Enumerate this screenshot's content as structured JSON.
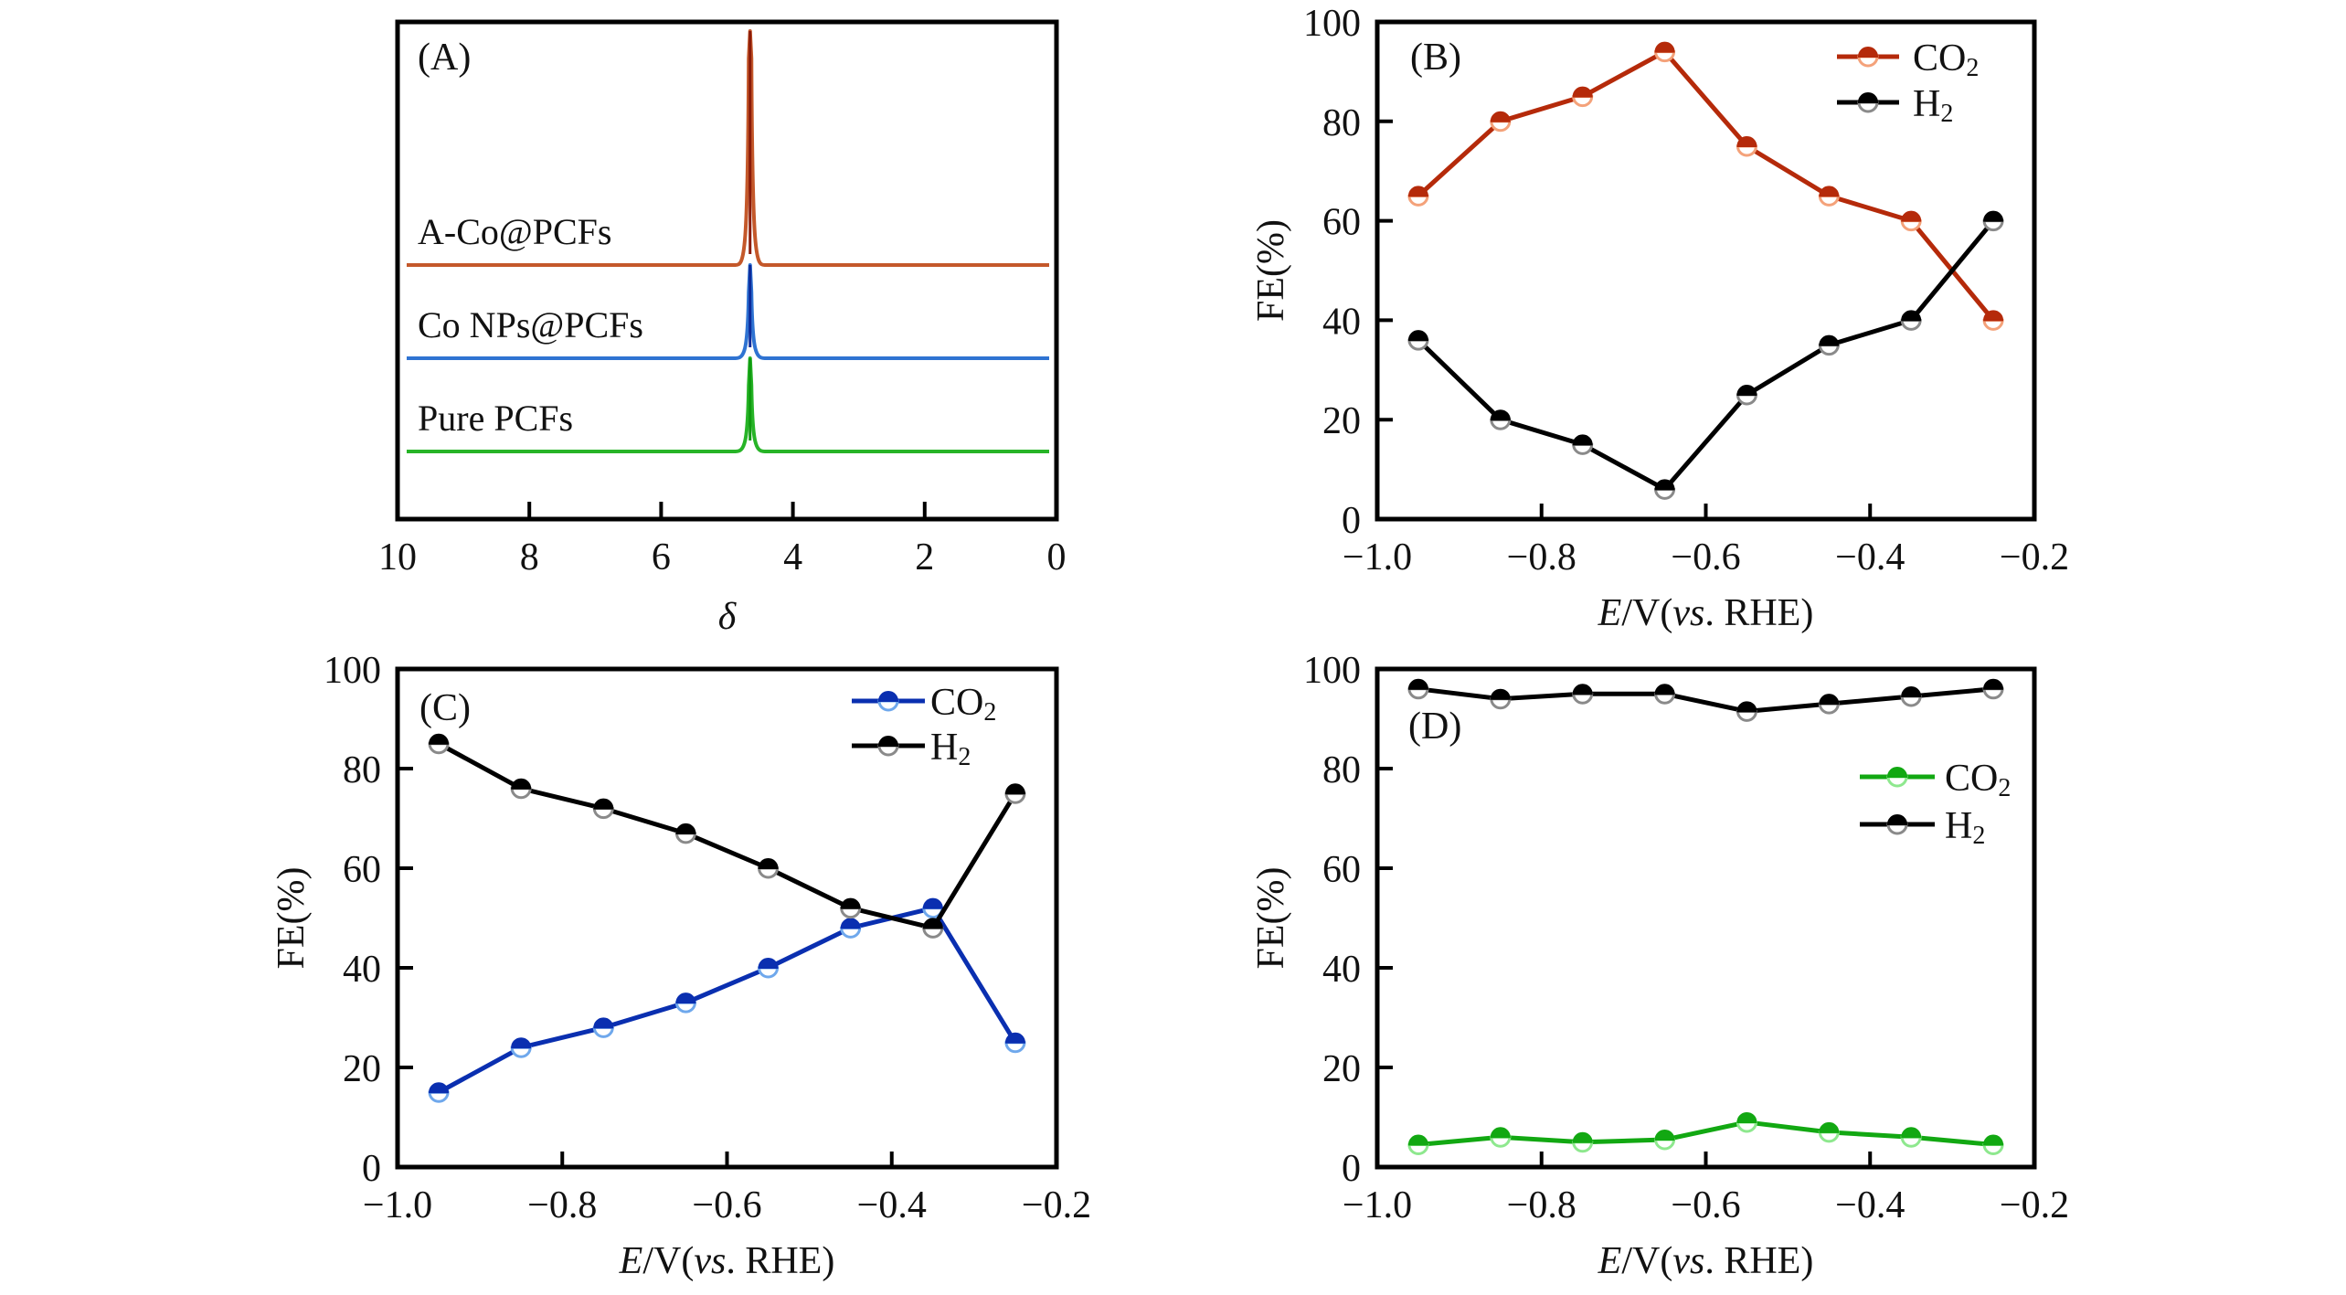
{
  "figure": {
    "panels": [
      "A",
      "B",
      "C",
      "D"
    ]
  },
  "chart_data": [
    {
      "id": "A",
      "type": "line",
      "panel_label": "(A)",
      "title": "",
      "xlabel": "δ",
      "ylabel": "",
      "xlim": [
        10,
        0
      ],
      "x_ticks": [
        10,
        8,
        6,
        4,
        2,
        0
      ],
      "x_tick_labels": [
        "10",
        "8",
        "6",
        "4",
        "2",
        "0"
      ],
      "y_ticks": [],
      "grid": false,
      "description": "Stacked 1H NMR-like spectra with a single sharp peak",
      "series": [
        {
          "name": "A-Co@PCFs",
          "color": "#c4582a",
          "peak_color": "#8a1a08",
          "peak_position": 4.65,
          "baseline_offset": 3,
          "relative_peak_height": 1.0
        },
        {
          "name": "Co NPs@PCFs",
          "color": "#2f73d2",
          "peak_color": "#0c2a9a",
          "peak_position": 4.65,
          "baseline_offset": 2,
          "relative_peak_height": 0.45
        },
        {
          "name": "Pure PCFs",
          "color": "#27b427",
          "peak_color": "#0f9a0f",
          "peak_position": 4.65,
          "baseline_offset": 1,
          "relative_peak_height": 0.45
        }
      ]
    },
    {
      "id": "B",
      "type": "line",
      "panel_label": "(B)",
      "xlabel_italic": "E",
      "xlabel_mid": "/V(",
      "xlabel_italic2": "vs",
      "xlabel_end": ". RHE)",
      "ylabel": "FE(%)",
      "xlim": [
        -1.0,
        -0.2
      ],
      "ylim": [
        0,
        100
      ],
      "x_ticks": [
        -1.0,
        -0.8,
        -0.6,
        -0.4,
        -0.2
      ],
      "x_tick_labels": [
        "−1.0",
        "−0.8",
        "−0.6",
        "−0.4",
        "−0.2"
      ],
      "y_ticks": [
        0,
        20,
        40,
        60,
        80,
        100
      ],
      "y_tick_labels": [
        "0",
        "20",
        "40",
        "60",
        "80",
        "100"
      ],
      "grid": false,
      "legend_position": "top-right",
      "x": [
        -0.95,
        -0.85,
        -0.75,
        -0.65,
        -0.55,
        -0.45,
        -0.35,
        -0.25
      ],
      "series": [
        {
          "name": "CO",
          "sub": "2",
          "color": "#b52a0a",
          "light": "#f4a27a",
          "values": [
            65,
            80,
            85,
            94,
            75,
            65,
            60,
            40
          ]
        },
        {
          "name": "H",
          "sub": "2",
          "color": "#000000",
          "light": "#8a8a8a",
          "values": [
            36,
            20,
            15,
            6,
            25,
            35,
            40,
            60
          ]
        }
      ]
    },
    {
      "id": "C",
      "type": "line",
      "panel_label": "(C)",
      "xlabel_italic": "E",
      "xlabel_mid": "/V(",
      "xlabel_italic2": "vs",
      "xlabel_end": ". RHE)",
      "ylabel": "FE(%)",
      "xlim": [
        -1.0,
        -0.2
      ],
      "ylim": [
        0,
        100
      ],
      "x_ticks": [
        -1.0,
        -0.8,
        -0.6,
        -0.4,
        -0.2
      ],
      "x_tick_labels": [
        "−1.0",
        "−0.8",
        "−0.6",
        "−0.4",
        "−0.2"
      ],
      "y_ticks": [
        0,
        20,
        40,
        60,
        80,
        100
      ],
      "y_tick_labels": [
        "0",
        "20",
        "40",
        "60",
        "80",
        "100"
      ],
      "grid": false,
      "legend_position": "top-right",
      "x": [
        -0.95,
        -0.85,
        -0.75,
        -0.65,
        -0.55,
        -0.45,
        -0.35,
        -0.25
      ],
      "series": [
        {
          "name": "CO",
          "sub": "2",
          "color": "#0a2fb0",
          "light": "#6fa8ec",
          "values": [
            15,
            24,
            28,
            33,
            40,
            48,
            52,
            25
          ]
        },
        {
          "name": "H",
          "sub": "2",
          "color": "#000000",
          "light": "#8a8a8a",
          "values": [
            85,
            76,
            72,
            67,
            60,
            52,
            48,
            75
          ]
        }
      ]
    },
    {
      "id": "D",
      "type": "line",
      "panel_label": "(D)",
      "xlabel_italic": "E",
      "xlabel_mid": "/V(",
      "xlabel_italic2": "vs",
      "xlabel_end": ". RHE)",
      "ylabel": "FE(%)",
      "xlim": [
        -1.0,
        -0.2
      ],
      "ylim": [
        0,
        100
      ],
      "x_ticks": [
        -1.0,
        -0.8,
        -0.6,
        -0.4,
        -0.2
      ],
      "x_tick_labels": [
        "−1.0",
        "−0.8",
        "−0.6",
        "−0.4",
        "−0.2"
      ],
      "y_ticks": [
        0,
        20,
        40,
        60,
        80,
        100
      ],
      "y_tick_labels": [
        "0",
        "20",
        "40",
        "60",
        "80",
        "100"
      ],
      "grid": false,
      "legend_position": "center-right",
      "x": [
        -0.95,
        -0.85,
        -0.75,
        -0.65,
        -0.55,
        -0.45,
        -0.35,
        -0.25
      ],
      "series": [
        {
          "name": "CO",
          "sub": "2",
          "color": "#12a812",
          "light": "#8ee88e",
          "values": [
            4.5,
            6,
            5,
            5.5,
            9,
            7,
            6,
            4.5
          ]
        },
        {
          "name": "H",
          "sub": "2",
          "color": "#000000",
          "light": "#8a8a8a",
          "values": [
            96,
            94,
            95,
            95,
            91.5,
            93,
            94.5,
            96
          ]
        }
      ]
    }
  ]
}
